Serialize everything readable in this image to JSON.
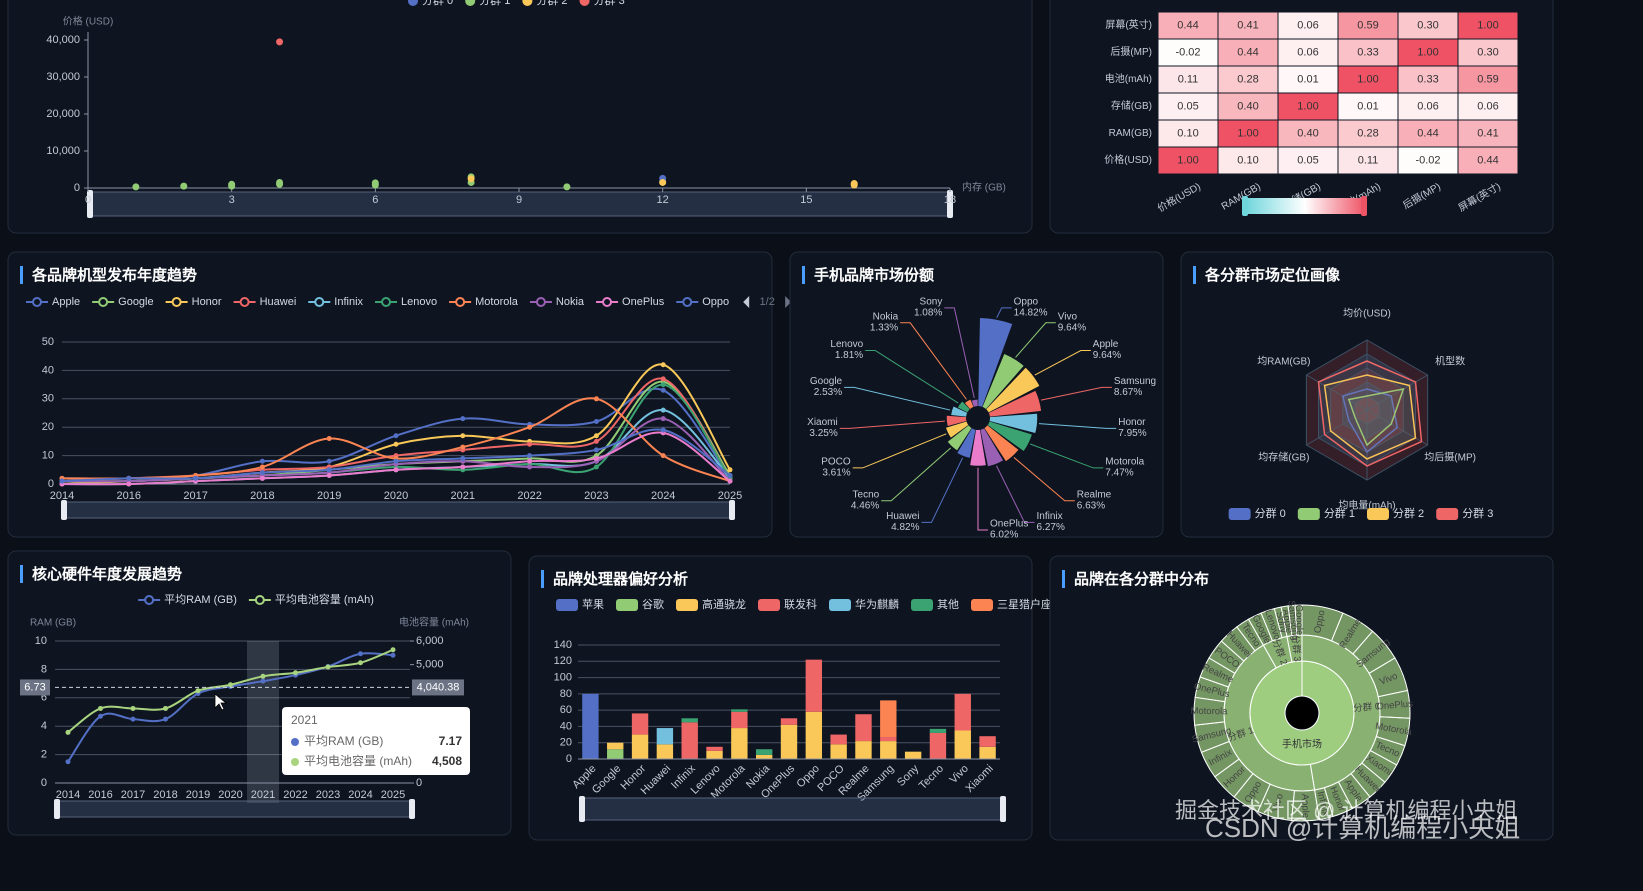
{
  "chart_data": [
    {
      "type": "scatter",
      "y_label": "价格 (USD)",
      "x_label": "内存 (GB)",
      "xlim": [
        0,
        18
      ],
      "xticks": [
        0,
        3,
        6,
        9,
        12,
        15,
        18
      ],
      "ylim": [
        0,
        40000
      ],
      "yticks": [
        0,
        {
          "value": 10000,
          "label": "10,000"
        },
        {
          "value": 20000,
          "label": "20,000"
        },
        {
          "value": 30000,
          "label": "30,000"
        },
        {
          "value": 40000,
          "label": "40,000"
        }
      ],
      "series": [
        {
          "name": "分群 0",
          "color": "#5470c6",
          "x": [
            12,
            12
          ],
          "values": [
            2600,
            1800
          ]
        },
        {
          "name": "分群 1",
          "color": "#91cc75",
          "x": [
            1,
            2,
            3,
            3,
            4,
            4,
            6,
            6,
            8,
            8,
            10
          ],
          "values": [
            300,
            500,
            1000,
            500,
            1000,
            1500,
            800,
            1400,
            1500,
            3000,
            300
          ]
        },
        {
          "name": "分群 2",
          "color": "#fac858",
          "x": [
            8,
            12,
            16,
            16
          ],
          "values": [
            2500,
            1500,
            1200,
            800
          ]
        },
        {
          "name": "分群 3",
          "color": "#ee6666",
          "x": [
            4
          ],
          "values": [
            39500
          ]
        }
      ]
    },
    {
      "type": "heatmap",
      "rows": [
        "屏幕(英寸)",
        "后摄(MP)",
        "电池(mAh)",
        "存储(GB)",
        "RAM(GB)",
        "价格(USD)"
      ],
      "columns": [
        "价格(USD)",
        "RAM(GB)",
        "存储(GB)",
        "电池(mAh)",
        "后摄(MP)",
        "屏幕(英寸)"
      ],
      "values": [
        [
          0.44,
          0.41,
          0.06,
          0.59,
          0.3,
          1
        ],
        [
          -0.02,
          0.44,
          0.06,
          0.33,
          1,
          0.3
        ],
        [
          0.11,
          0.28,
          0.01,
          1,
          0.33,
          0.59
        ],
        [
          0.05,
          0.4,
          1,
          0.01,
          0.06,
          0.06
        ],
        [
          0.1,
          1,
          0.4,
          0.28,
          0.44,
          0.41
        ],
        [
          1,
          0.1,
          0.05,
          0.11,
          -0.02,
          0.44
        ]
      ],
      "value_labels": [
        [
          "0.44",
          "0.41",
          "0.06",
          "0.59",
          "0.30",
          "1.00"
        ],
        [
          "-0.02",
          "0.44",
          "0.06",
          "0.33",
          "1.00",
          "0.30"
        ],
        [
          "0.11",
          "0.28",
          "0.01",
          "1.00",
          "0.33",
          "0.59"
        ],
        [
          "0.05",
          "0.40",
          "1.00",
          "0.01",
          "0.06",
          "0.06"
        ],
        [
          "0.10",
          "1.00",
          "0.40",
          "0.28",
          "0.44",
          "0.41"
        ],
        [
          "1.00",
          "0.10",
          "0.05",
          "0.11",
          "-0.02",
          "0.44"
        ]
      ]
    },
    {
      "type": "line",
      "title": "各品牌机型发布年度趋势",
      "legend_page": "1/2",
      "categories": [
        "2014",
        "2016",
        "2017",
        "2018",
        "2019",
        "2020",
        "2021",
        "2022",
        "2023",
        "2024",
        "2025"
      ],
      "ylim": [
        0,
        50
      ],
      "yticks": [
        0,
        10,
        20,
        30,
        40,
        50
      ],
      "series": [
        {
          "name": "Apple",
          "color": "#5470c6",
          "values": [
            2,
            2,
            3,
            8,
            8,
            17,
            23,
            21,
            22,
            33,
            2
          ]
        },
        {
          "name": "Google",
          "color": "#91cc75",
          "values": [
            1,
            1,
            2,
            3,
            5,
            7,
            8,
            9,
            10,
            36,
            3
          ]
        },
        {
          "name": "Honor",
          "color": "#fac858",
          "values": [
            0,
            1,
            2,
            4,
            6,
            14,
            17,
            15,
            17,
            42,
            5
          ]
        },
        {
          "name": "Huawei",
          "color": "#ee6666",
          "values": [
            1,
            2,
            3,
            5,
            6,
            10,
            12,
            14,
            15,
            37,
            2
          ]
        },
        {
          "name": "Infinix",
          "color": "#73c0de",
          "values": [
            0,
            0,
            1,
            2,
            3,
            5,
            6,
            7,
            8,
            26,
            2
          ]
        },
        {
          "name": "Lenovo",
          "color": "#3ba272",
          "values": [
            1,
            1,
            2,
            3,
            4,
            6,
            5,
            7,
            6,
            35,
            2
          ]
        },
        {
          "name": "Motorola",
          "color": "#fc8452",
          "values": [
            2,
            2,
            3,
            6,
            16,
            9,
            13,
            20,
            30,
            10,
            1
          ]
        },
        {
          "name": "Nokia",
          "color": "#9a60b4",
          "values": [
            1,
            1,
            2,
            3,
            4,
            7,
            8,
            6,
            8,
            23,
            1
          ]
        },
        {
          "name": "OnePlus",
          "color": "#ea7ccc",
          "values": [
            0,
            0,
            1,
            2,
            3,
            5,
            6,
            8,
            9,
            18,
            1
          ]
        },
        {
          "name": "Oppo",
          "color": "#5470c6",
          "values": [
            1,
            2,
            2,
            4,
            5,
            8,
            9,
            10,
            12,
            19,
            3
          ]
        }
      ]
    },
    {
      "type": "pie",
      "title": "手机品牌市场份额",
      "rose": "area",
      "colors": [
        "#5470c6",
        "#91cc75",
        "#fac858",
        "#ee6666",
        "#73c0de",
        "#3ba272",
        "#fc8452",
        "#9a60b4",
        "#ea7ccc"
      ],
      "categories": [
        "Oppo",
        "Vivo",
        "Apple",
        "Samsung",
        "Honor",
        "Motorola",
        "Realme",
        "Infinix",
        "OnePlus",
        "Huawei",
        "Tecno",
        "POCO",
        "Xiaomi",
        "Google",
        "Lenovo",
        "Nokia",
        "Sony"
      ],
      "values": [
        14.82,
        9.64,
        9.64,
        8.67,
        7.95,
        7.47,
        6.63,
        6.27,
        6.02,
        4.82,
        4.46,
        3.61,
        3.25,
        2.53,
        1.81,
        1.33,
        1.08
      ],
      "value_labels": [
        "14.82%",
        "9.64%",
        "9.64%",
        "8.67%",
        "7.95%",
        "7.47%",
        "6.63%",
        "6.27%",
        "6.02%",
        "4.82%",
        "4.46%",
        "3.61%",
        "3.25%",
        "2.53%",
        "1.81%",
        "1.33%",
        "1.08%"
      ]
    },
    {
      "type": "radar",
      "title": "各分群市场定位画像",
      "rlim": [
        0,
        1
      ],
      "indicators": [
        "均价(USD)",
        "机型数",
        "均后摄(MP)",
        "均电量(mAh)",
        "均存储(GB)",
        "均RAM(GB)"
      ],
      "series": [
        {
          "name": "分群 0",
          "color": "#5470c6",
          "values": [
            0.3,
            0.4,
            0.5,
            0.6,
            0.3,
            0.4
          ]
        },
        {
          "name": "分群 1",
          "color": "#91cc75",
          "values": [
            0.2,
            0.6,
            0.4,
            0.5,
            0.2,
            0.3
          ]
        },
        {
          "name": "分群 2",
          "color": "#fac858",
          "values": [
            0.5,
            0.7,
            0.8,
            0.7,
            0.6,
            0.7
          ]
        },
        {
          "name": "分群 3",
          "color": "#ee6666",
          "values": [
            0.7,
            0.8,
            0.9,
            0.8,
            0.7,
            0.8
          ]
        }
      ]
    },
    {
      "type": "line",
      "title": "核心硬件年度发展趋势",
      "y_label": "RAM (GB)",
      "y2_label": "电池容量 (mAh)",
      "categories": [
        "2014",
        "2016",
        "2017",
        "2018",
        "2019",
        "2020",
        "2021",
        "2022",
        "2023",
        "2024",
        "2025"
      ],
      "ylim": [
        0,
        10
      ],
      "yticks": [
        0,
        2,
        4,
        6,
        8,
        10
      ],
      "y2lim": [
        0,
        6000
      ],
      "y2ticks": [
        0,
        {
          "value": 5000,
          "label": "5,000"
        },
        {
          "value": 6000,
          "label": "6,000"
        }
      ],
      "series": [
        {
          "name": "平均RAM (GB)",
          "color": "#5470c6",
          "values": [
            1.5,
            4.7,
            4.5,
            4.5,
            6.3,
            6.8,
            7.17,
            7.6,
            8.2,
            9.1,
            9.0
          ]
        },
        {
          "name": "平均电池容量 (mAh)",
          "color": "#a9d47f",
          "axis": "y2",
          "values": [
            2140,
            3150,
            3150,
            3150,
            3900,
            4150,
            4508,
            4660,
            4900,
            5080,
            5630
          ]
        }
      ],
      "pointer": {
        "y": 6.73,
        "y2": {
          "value": 4040.38,
          "label": "4,040.38"
        }
      },
      "tooltip": {
        "index": 6,
        "value_labels": [
          "7.17",
          "4,508"
        ]
      }
    },
    {
      "type": "bar",
      "title": "品牌处理器偏好分析",
      "stacked": true,
      "categories": [
        "Apple",
        "Google",
        "Honor",
        "Huawei",
        "Infinix",
        "Lenovo",
        "Motorola",
        "Nokia",
        "OnePlus",
        "Oppo",
        "POCO",
        "Realme",
        "Samsung",
        "Sony",
        "Tecno",
        "Vivo",
        "Xiaomi"
      ],
      "ylim": [
        0,
        140
      ],
      "yticks": [
        0,
        20,
        40,
        60,
        80,
        100,
        120,
        140
      ],
      "series": [
        {
          "name": "苹果",
          "color": "#5470c6",
          "values": [
            80,
            0,
            0,
            0,
            0,
            0,
            0,
            0,
            0,
            0,
            0,
            0,
            0,
            0,
            0,
            0,
            0
          ]
        },
        {
          "name": "谷歌",
          "color": "#91cc75",
          "values": [
            0,
            12,
            0,
            0,
            0,
            0,
            0,
            0,
            0,
            0,
            0,
            0,
            0,
            0,
            0,
            0,
            0
          ]
        },
        {
          "name": "高通骁龙",
          "color": "#fac858",
          "values": [
            0,
            8,
            30,
            18,
            0,
            10,
            38,
            5,
            42,
            58,
            18,
            22,
            22,
            9,
            0,
            35,
            15
          ]
        },
        {
          "name": "联发科",
          "color": "#ee6666",
          "values": [
            0,
            0,
            26,
            0,
            45,
            5,
            20,
            0,
            8,
            64,
            12,
            33,
            5,
            0,
            32,
            45,
            13
          ]
        },
        {
          "name": "华为麒麟",
          "color": "#73c0de",
          "values": [
            0,
            0,
            0,
            20,
            0,
            0,
            0,
            0,
            0,
            0,
            0,
            0,
            0,
            0,
            0,
            0,
            0
          ]
        },
        {
          "name": "其他",
          "color": "#3ba272",
          "values": [
            0,
            0,
            0,
            0,
            5,
            0,
            3,
            7,
            0,
            0,
            0,
            0,
            0,
            0,
            5,
            0,
            0
          ]
        },
        {
          "name": "三星猎户座",
          "color": "#fc8452",
          "values": [
            0,
            0,
            0,
            0,
            0,
            0,
            0,
            0,
            0,
            0,
            0,
            0,
            45,
            0,
            0,
            0,
            0
          ]
        }
      ]
    },
    {
      "type": "sunburst",
      "title": "品牌在各分群中分布",
      "color": "#9fcd80",
      "root": {
        "name": "手机市场",
        "children": [
          {
            "name": "分群 0",
            "children": [
              {
                "name": "Oppo",
                "value": 6
              },
              {
                "name": "Realme",
                "value": 5
              },
              {
                "name": "Samsung",
                "value": 5
              },
              {
                "name": "Vivo",
                "value": 5
              },
              {
                "name": "OnePlus",
                "value": 4
              },
              {
                "name": "Motorola",
                "value": 4
              },
              {
                "name": "Tecno",
                "value": 3
              },
              {
                "name": "Xiaomi",
                "value": 3
              },
              {
                "name": "Huawei",
                "value": 3
              },
              {
                "name": "Apple",
                "value": 3
              },
              {
                "name": "Honor",
                "value": 3
              },
              {
                "name": "Infinix",
                "value": 2
              }
            ]
          },
          {
            "name": "分群 1",
            "children": [
              {
                "name": "Apple",
                "value": 4
              },
              {
                "name": "Vivo",
                "value": 5
              },
              {
                "name": "Oppo",
                "value": 4
              },
              {
                "name": "Honor",
                "value": 4
              },
              {
                "name": "Infinix",
                "value": 4
              },
              {
                "name": "Samsung",
                "value": 4
              },
              {
                "name": "Motorola",
                "value": 4
              },
              {
                "name": "OnePlus",
                "value": 3
              },
              {
                "name": "Realme",
                "value": 3
              },
              {
                "name": "POCO",
                "value": 3
              },
              {
                "name": "Huawei",
                "value": 3
              },
              {
                "name": "Tecno",
                "value": 2
              }
            ]
          },
          {
            "name": "分群 2",
            "children": [
              {
                "name": "Google",
                "value": 2
              },
              {
                "name": "Lenovo",
                "value": 2
              },
              {
                "name": "Sony",
                "value": 1
              }
            ]
          },
          {
            "name": "分群 3",
            "children": [
              {
                "name": "Apple",
                "value": 1
              },
              {
                "name": "Samsung",
                "value": 1
              },
              {
                "name": "Google",
                "value": 1
              }
            ]
          }
        ]
      }
    }
  ],
  "watermarks": [
    "掘金技术社区 @ 计算机编程小央姐",
    "CSDN @计算机编程小央姐"
  ]
}
